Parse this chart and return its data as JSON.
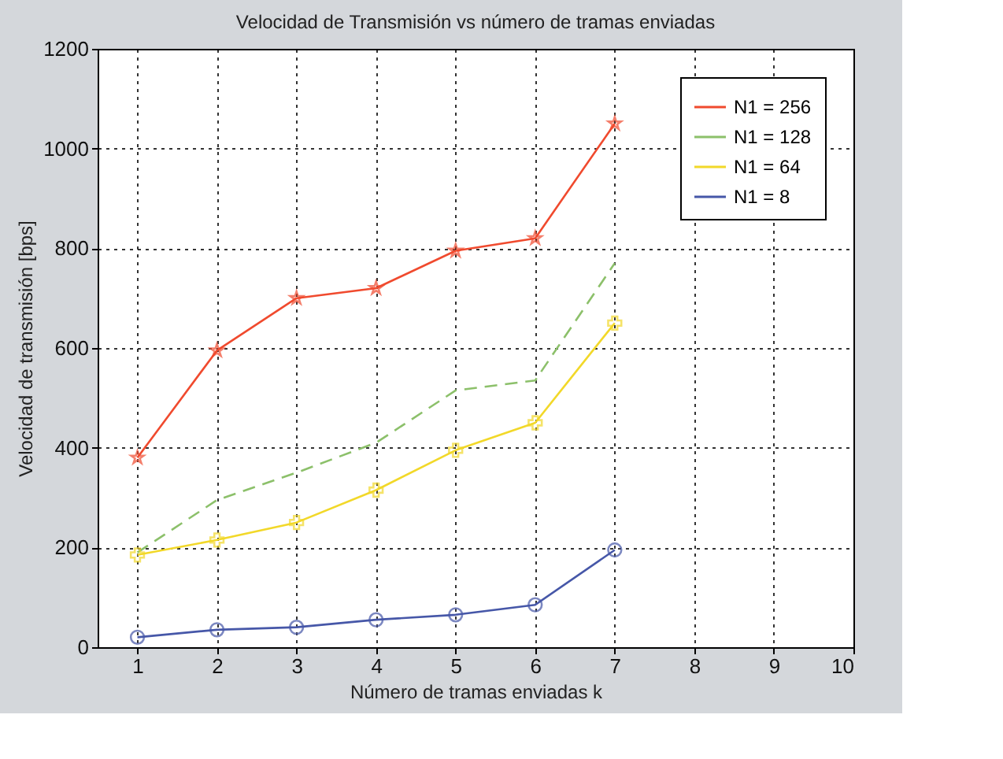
{
  "chart_data": {
    "type": "line",
    "title": "Velocidad de Transmisión vs número de tramas enviadas",
    "xlabel": "Número de tramas enviadas k",
    "ylabel": "Velocidad de transmisión [bps]",
    "x": [
      1,
      2,
      3,
      4,
      5,
      6,
      7
    ],
    "series": [
      {
        "name": "N1 = 256",
        "color": "#f04a2e",
        "marker": "star",
        "line_style": "solid",
        "values": [
          380,
          595,
          700,
          720,
          795,
          820,
          1050
        ]
      },
      {
        "name": "N1 = 128",
        "color": "#8cc06a",
        "marker": "none",
        "line_style": "dashed",
        "values": [
          190,
          295,
          350,
          410,
          515,
          535,
          770
        ]
      },
      {
        "name": "N1 = 64",
        "color": "#f2d829",
        "marker": "cross",
        "line_style": "solid",
        "values": [
          185,
          215,
          250,
          315,
          395,
          450,
          650
        ]
      },
      {
        "name": "N1 = 8",
        "color": "#4657a8",
        "marker": "circle",
        "line_style": "solid",
        "values": [
          20,
          35,
          40,
          55,
          65,
          85,
          195
        ]
      }
    ],
    "xlim": [
      0.5,
      10
    ],
    "xticks": [
      1,
      2,
      3,
      4,
      5,
      6,
      7,
      8,
      9,
      10
    ],
    "ylim": [
      0,
      1200
    ],
    "yticks": [
      0,
      200,
      400,
      600,
      800,
      1000,
      1200
    ],
    "grid": true,
    "legend": "top right"
  }
}
